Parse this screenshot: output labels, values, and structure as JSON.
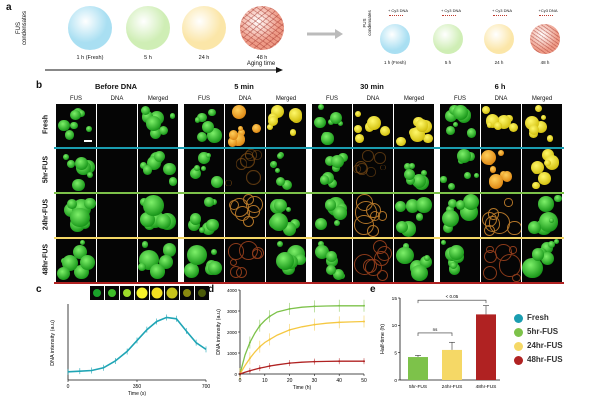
{
  "panel_a": {
    "letter": "a",
    "ylabel": "FUS condensates",
    "stages": [
      "1 h (Fresh)",
      "5 h",
      "24 h",
      "48 h"
    ],
    "arrow_label": "Aging time",
    "right_ylabel": "FUS condensates",
    "right_tags": [
      "+ Cy3 DNA",
      "+ Cy3 DNA",
      "+ Cy3 DNA",
      "+Cy3 DNA"
    ],
    "right_stages": [
      "1 h (Fresh)",
      "5 h",
      "24 h",
      "48 h"
    ],
    "colors": [
      "#a9dff2",
      "#cfeeb5",
      "#fbe6a8",
      "#ee9a86"
    ]
  },
  "panel_b": {
    "letter": "b",
    "timepoints": [
      "Before DNA",
      "5 min",
      "30 min",
      "6 h"
    ],
    "channels": [
      "FUS",
      "DNA",
      "Merged"
    ],
    "rows": [
      "Fresh",
      "5hr-FUS",
      "24hr-FUS",
      "48hr-FUS"
    ],
    "row_colors": [
      "#1a9db0",
      "#7dc24a",
      "#f5d866",
      "#b02222"
    ]
  },
  "panel_c": {
    "letter": "c",
    "ylabel": "DNA intensity (a.u)",
    "xlabel": "Time (s)",
    "xticks": [
      "0",
      "350",
      "700"
    ],
    "color": "#1fa5b5"
  },
  "panel_d": {
    "letter": "d",
    "ylabel": "DNA intensity (a.u)",
    "xlabel": "Time (h)",
    "xticks": [
      "0",
      "10",
      "20",
      "30",
      "40",
      "50"
    ],
    "yticks": [
      "0",
      "1000",
      "2000",
      "3000",
      "4000"
    ]
  },
  "panel_e": {
    "letter": "e",
    "ylabel": "Half-time (h)",
    "yticks": [
      "0",
      "5",
      "10",
      "15"
    ],
    "ns_label": "ns",
    "p_label": "< 0.05",
    "legend": [
      {
        "label": "Fresh",
        "color": "#1a9db0"
      },
      {
        "label": "5hr-FUS",
        "color": "#7dc24a"
      },
      {
        "label": "24hr-FUS",
        "color": "#f5d866"
      },
      {
        "label": "48hr-FUS",
        "color": "#b02222"
      }
    ]
  },
  "chart_data": [
    {
      "type": "line",
      "xlabel": "Time (s)",
      "ylabel": "DNA intensity (a.u)",
      "xlim": [
        0,
        700
      ],
      "series": [
        {
          "x": [
            0,
            60,
            120,
            180,
            240,
            300,
            350,
            400,
            450,
            500,
            550,
            600,
            650,
            700
          ],
          "values": [
            0.12,
            0.13,
            0.14,
            0.18,
            0.28,
            0.42,
            0.58,
            0.74,
            0.86,
            0.92,
            0.9,
            0.72,
            0.55,
            0.45
          ]
        }
      ]
    },
    {
      "type": "line",
      "xlabel": "Time (h)",
      "ylabel": "DNA intensity (a.u)",
      "xlim": [
        0,
        50
      ],
      "ylim": [
        0,
        4000
      ],
      "series": [
        {
          "x": [
            0,
            2,
            4,
            6,
            8,
            10,
            12,
            15,
            20,
            25,
            30,
            35,
            40,
            45,
            50
          ],
          "values": [
            0,
            900,
            1500,
            1950,
            2300,
            2550,
            2750,
            2950,
            3100,
            3180,
            3220,
            3240,
            3250,
            3250,
            3250
          ]
        },
        {
          "x": [
            0,
            2,
            4,
            6,
            8,
            10,
            12,
            15,
            20,
            25,
            30,
            35,
            40,
            45,
            50
          ],
          "values": [
            0,
            400,
            750,
            1050,
            1300,
            1500,
            1650,
            1850,
            2100,
            2250,
            2350,
            2420,
            2460,
            2480,
            2500
          ]
        },
        {
          "x": [
            0,
            2,
            4,
            6,
            8,
            10,
            12,
            15,
            20,
            25,
            30,
            35,
            40,
            45,
            50
          ],
          "values": [
            0,
            80,
            150,
            220,
            280,
            330,
            380,
            440,
            520,
            560,
            590,
            600,
            610,
            610,
            610
          ]
        }
      ]
    },
    {
      "type": "bar",
      "ylabel": "Half-time (h)",
      "categories": [
        "5hr-FUS",
        "24hr-FUS",
        "48hr-FUS"
      ],
      "values": [
        4.2,
        5.5,
        12.0
      ],
      "errors": [
        0.3,
        1.4,
        1.6
      ],
      "ylim": [
        0,
        15
      ]
    }
  ]
}
